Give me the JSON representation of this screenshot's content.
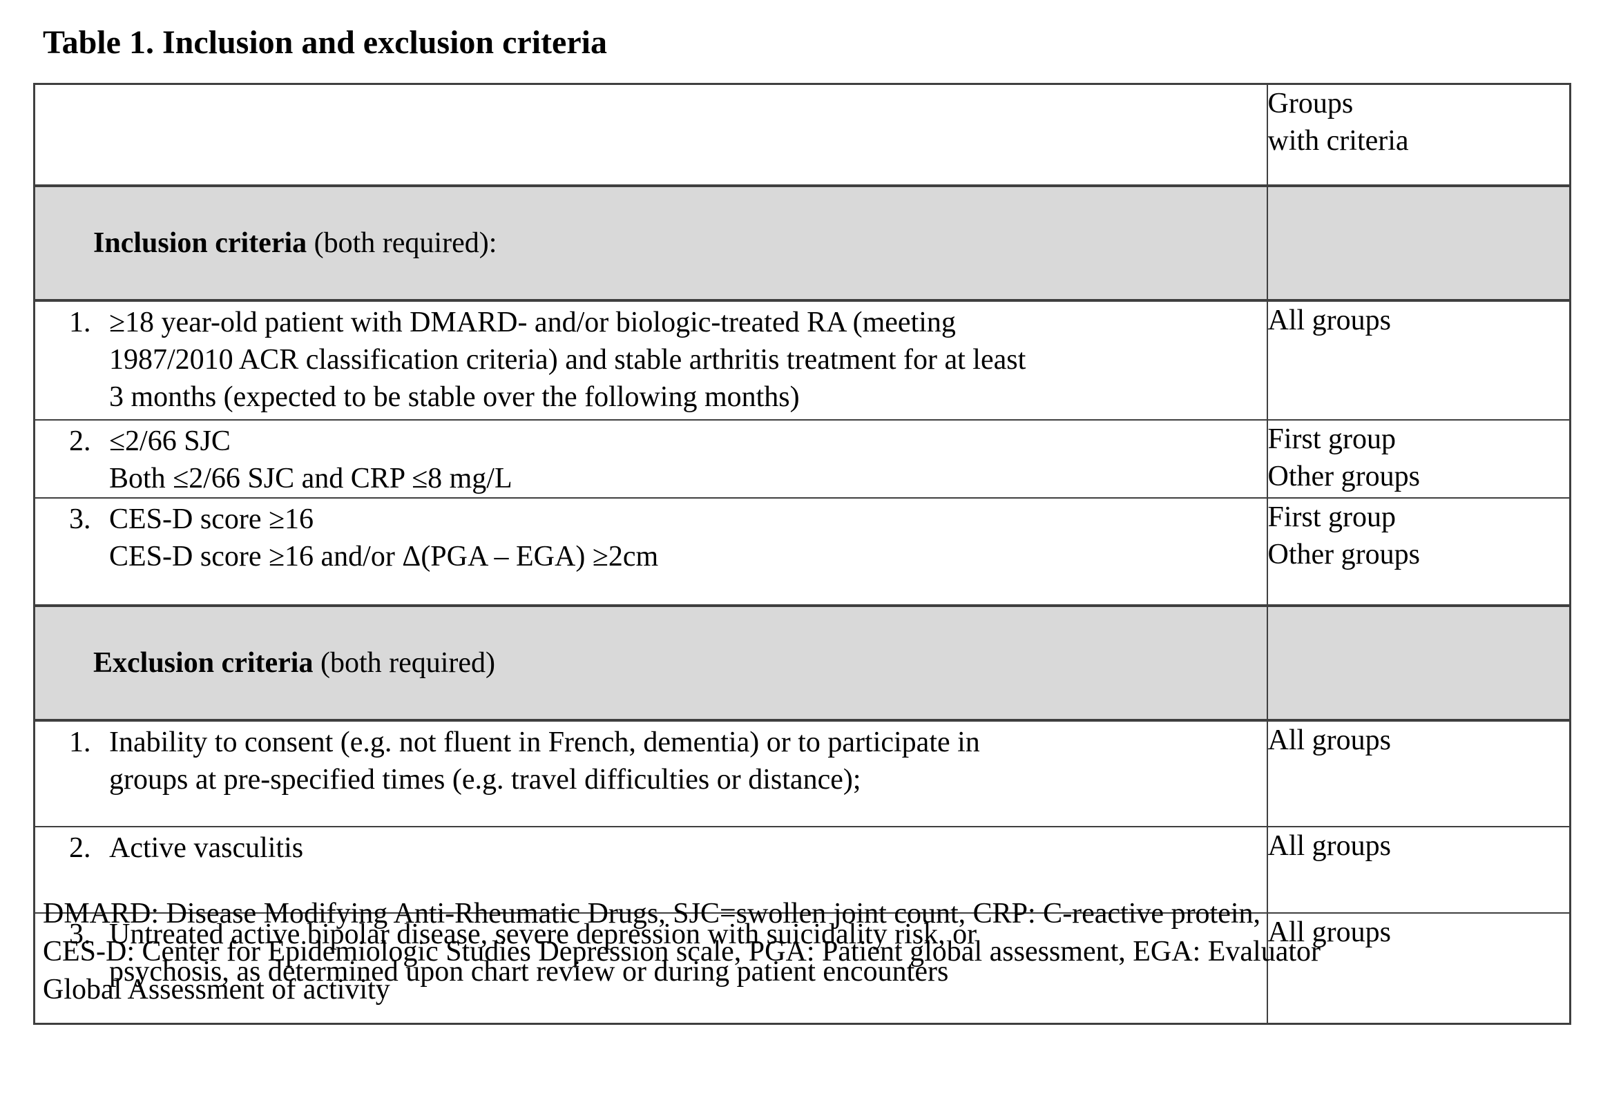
{
  "title": "Table 1. Inclusion and exclusion criteria",
  "table": {
    "header": {
      "col2": "Groups\nwith criteria"
    },
    "sections": [
      {
        "heading_bold": "Inclusion criteria",
        "heading_rest": " (both required):",
        "rows": [
          {
            "num": "1.",
            "text": "≥18 year-old patient with DMARD- and/or biologic-treated RA (meeting\n1987/2010 ACR classification criteria) and stable arthritis treatment for at least\n3 months (expected to be stable over the following months)",
            "groups": "All groups"
          },
          {
            "num": "2.",
            "text": "≤2/66 SJC\nBoth ≤2/66 SJC and CRP ≤8 mg/L",
            "groups": "First group\nOther groups"
          },
          {
            "num": "3.",
            "text": "CES-D score ≥16\nCES-D score ≥16 and/or Δ(PGA – EGA) ≥2cm",
            "groups": "First group\nOther groups"
          }
        ]
      },
      {
        "heading_bold": "Exclusion criteria",
        "heading_rest": " (both required)",
        "rows": [
          {
            "num": "1.",
            "text": "Inability to consent (e.g. not fluent in French, dementia) or to participate in\ngroups at pre-specified times (e.g. travel difficulties or distance);",
            "groups": "All groups"
          },
          {
            "num": "2.",
            "text": "Active vasculitis",
            "groups": "All groups"
          },
          {
            "num": "3.",
            "text": "Untreated active bipolar disease, severe depression with suicidality risk, or\npsychosis, as determined upon chart review or during patient encounters",
            "groups": "All groups"
          }
        ]
      }
    ]
  },
  "footnote": "DMARD: Disease Modifying Anti-Rheumatic Drugs, SJC=swollen joint count, CRP: C-reactive protein,\nCES-D: Center for Epidemiologic Studies Depression scale, PGA: Patient global assessment, EGA: Evaluator\nGlobal Assessment of activity",
  "colors": {
    "section_header_bg": "#d9d9d9",
    "border": "#3f3f3f",
    "text": "#000000",
    "background": "#ffffff"
  }
}
